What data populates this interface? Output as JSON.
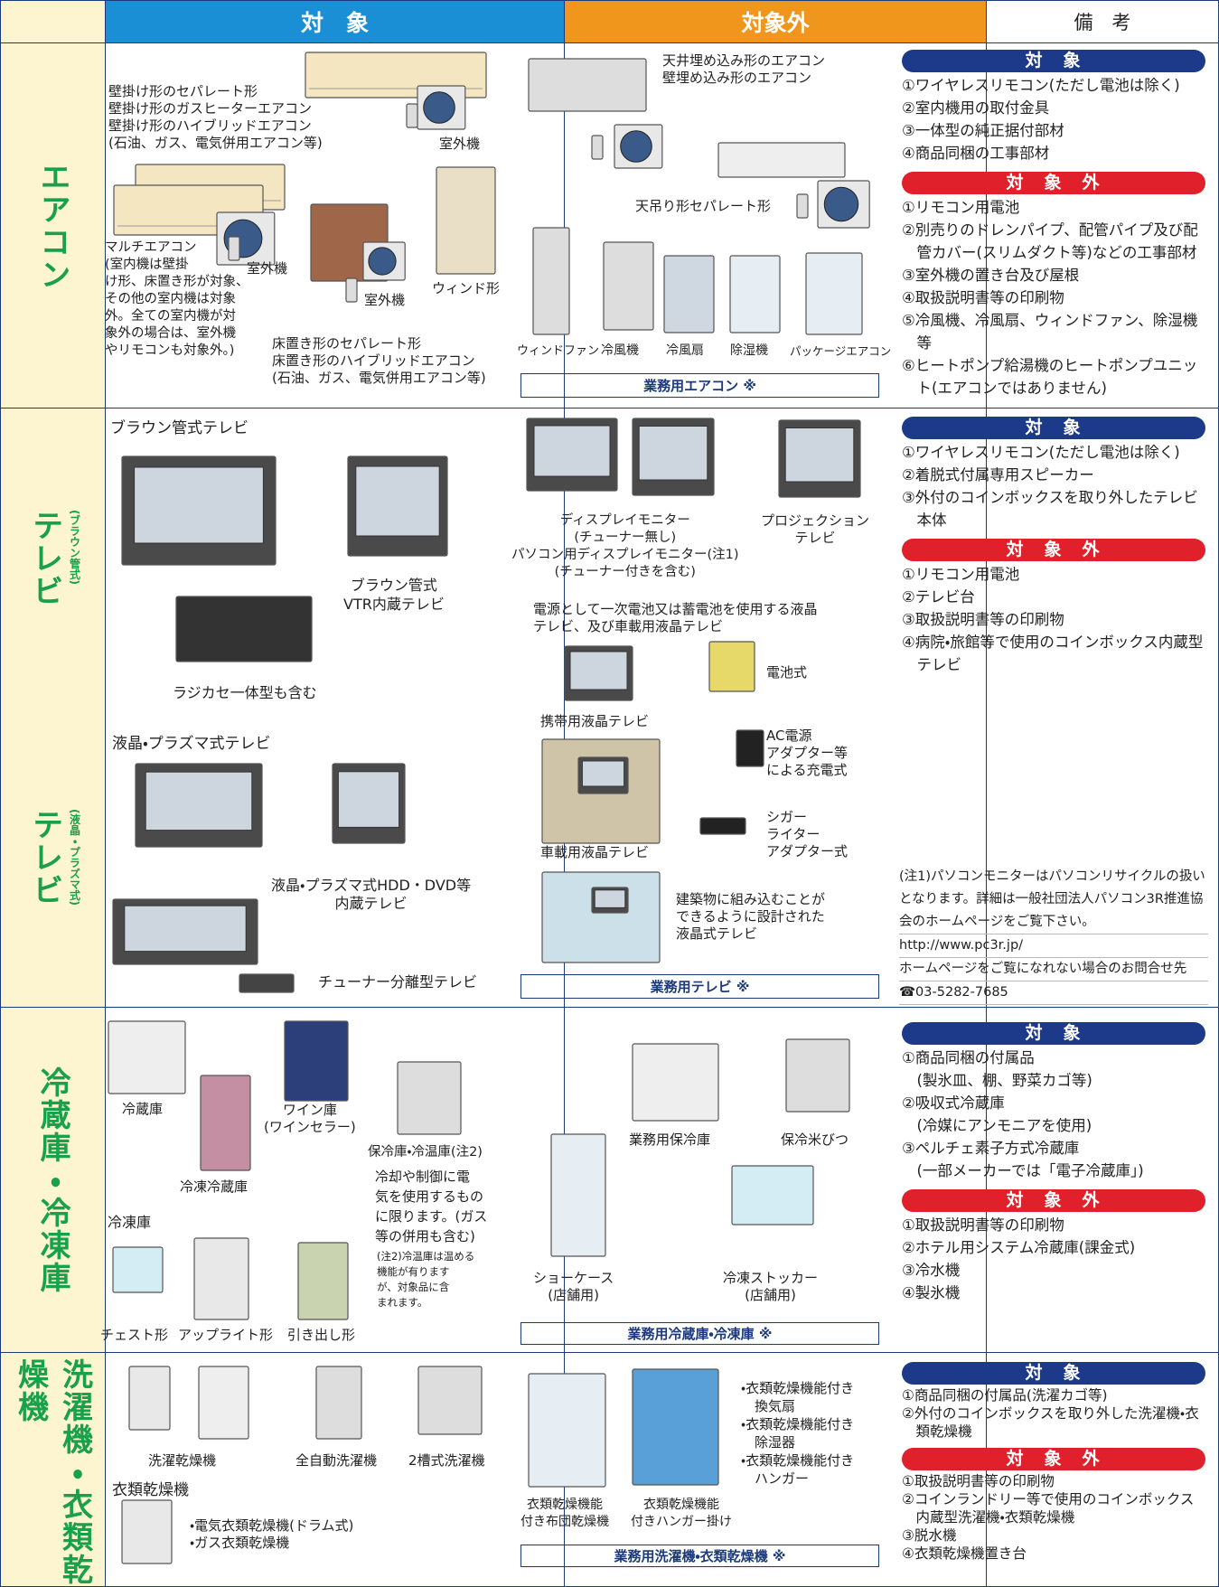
{
  "header": {
    "target": "対　象",
    "non_target": "対象外",
    "remarks": "備　考"
  },
  "rows": [
    {
      "label": "エアコン",
      "target_texts": [
        "壁掛け形のセパレート形\n壁掛け形のガスヒーターエアコン\n壁掛け形のハイブリッドエアコン\n(石油、ガス、電気併用エアコン等)",
        "室外機",
        "マルチエアコン\n(室内機は壁掛\nけ形、床置き形が対象、\nその他の室内機は対象\n外。全ての室内機が対\n象外の場合は、室外機\nやリモコンも対象外。)",
        "室外機",
        "室外機",
        "ウィンド形",
        "床置き形のセパレート形\n床置き形のハイブリッドエアコン\n(石油、ガス、電気併用エアコン等)"
      ],
      "non_target_texts": [
        "天井埋め込み形のエアコン\n壁埋め込み形のエアコン",
        "天吊り形セパレート形",
        "ウィンドファン",
        "冷風機",
        "冷風扇",
        "除湿機",
        "パッケージエアコン"
      ],
      "commercial": "業務用エアコン ※",
      "remarks": {
        "target_heading": "対　象",
        "target_items": [
          "①ワイヤレスリモコン(ただし電池は除く)",
          "②室内機用の取付金具",
          "③一体型の純正据付部材",
          "④商品同梱の工事部材"
        ],
        "non_target_heading": "対　象　外",
        "non_target_items": [
          "①リモコン用電池",
          "②別売りのドレンパイプ、配管パイプ及び配管カバー(スリムダクト等)などの工事部材",
          "③室外機の置き台及び屋根",
          "④取扱説明書等の印刷物",
          "⑤冷風機、冷風扇、ウィンドファン、除湿機等",
          "⑥ヒートポンプ給湯機のヒートポンプユニット(エアコンではありません)"
        ]
      }
    },
    {
      "labels": [
        {
          "main": "テレビ",
          "sub": "(ブラウン管式)"
        },
        {
          "main": "テレビ",
          "sub": "(液晶・プラズマ式)"
        }
      ],
      "target_texts": [
        "ブラウン管式テレビ",
        "ブラウン管式\nVTR内蔵テレビ",
        "ラジカセ一体型も含む",
        "液晶・プラズマ式テレビ",
        "液晶・プラズマ式HDD・DVD等\n内蔵テレビ",
        "チューナー分離型テレビ"
      ],
      "non_target_texts": [
        "ディスプレイモニター\n(チューナー無し)\nパソコン用ディスプレイモニター(注1)\n(チューナー付きを含む)",
        "プロジェクション\nテレビ",
        "電源として一次電池又は蓄電池を使用する液晶\nテレビ、及び車載用液晶テレビ",
        "電池式",
        "携帯用液晶テレビ",
        "AC電源\nアダプター等\nによる充電式",
        "車載用液晶テレビ",
        "シガー\nライター\nアダプター式",
        "建築物に組み込むことが\nできるように設計された\n液晶式テレビ"
      ],
      "commercial": "業務用テレビ ※",
      "remarks": {
        "target_heading": "対　象",
        "target_items": [
          "①ワイヤレスリモコン(ただし電池は除く)",
          "②着脱式付属専用スピーカー",
          "③外付のコインボックスを取り外したテレビ本体"
        ],
        "non_target_heading": "対　象　外",
        "non_target_items": [
          "①リモコン用電池",
          "②テレビ台",
          "③取扱説明書等の印刷物",
          "④病院・旅館等で使用のコインボックス内蔵型テレビ"
        ],
        "note": [
          "(注1)パソコンモニターはパソコンリサイクルの扱いとなります。詳細は一般社団法人パソコン3R推進協会のホームページをご覧下さい。",
          "http://www.pc3r.jp/",
          "ホームページをご覧になれない場合のお問合せ先",
          "☎03-5282-7685"
        ]
      }
    },
    {
      "label": "冷蔵庫・冷凍庫",
      "target_texts": [
        "冷蔵庫",
        "ワイン庫\n(ワインセラー)",
        "保冷庫・冷温庫(注2)",
        "冷却や制御に電\n気を使用するもの\nに限ります。(ガス\n等の併用も含む)",
        "(注2)冷温庫は温める\n機能が有ります\nが、対象品に含\nまれます。",
        "冷凍冷蔵庫",
        "冷凍庫",
        "チェスト形",
        "アップライト形",
        "引き出し形"
      ],
      "non_target_texts": [
        "業務用保冷庫",
        "保冷米びつ",
        "ショーケース\n(店舗用)",
        "冷凍ストッカー\n(店舗用)"
      ],
      "commercial": "業務用冷蔵庫・冷凍庫 ※",
      "remarks": {
        "target_heading": "対　象",
        "target_items": [
          "①商品同梱の付属品\n(製氷皿、棚、野菜カゴ等)",
          "②吸収式冷蔵庫\n(冷媒にアンモニアを使用)",
          "③ペルチェ素子方式冷蔵庫\n(一部メーカーでは「電子冷蔵庫」)"
        ],
        "non_target_heading": "対　象　外",
        "non_target_items": [
          "①取扱説明書等の印刷物",
          "②ホテル用システム冷蔵庫(課金式)",
          "③冷水機",
          "④製氷機"
        ]
      }
    },
    {
      "label": "洗濯機・衣類乾燥機",
      "target_texts": [
        "洗濯乾燥機",
        "全自動洗濯機",
        "2槽式洗濯機",
        "衣類乾燥機",
        "・電気衣類乾燥機(ドラム式)\n・ガス衣類乾燥機"
      ],
      "non_target_texts": [
        "・衣類乾燥機能付き\n　換気扇\n・衣類乾燥機能付き\n　除湿器\n・衣類乾燥機能付き\n　ハンガー",
        "衣類乾燥機能\n付き布団乾燥機",
        "衣類乾燥機能\n付きハンガー掛け"
      ],
      "commercial": "業務用洗濯機・衣類乾燥機 ※",
      "remarks": {
        "target_heading": "対　象",
        "target_items": [
          "①商品同梱の付属品(洗濯カゴ等)",
          "②外付のコインボックスを取り外した洗濯機・衣類乾燥機"
        ],
        "non_target_heading": "対　象　外",
        "non_target_items": [
          "①取扱説明書等の印刷物",
          "②コインランドリー等で使用のコインボックス内蔵型洗濯機・衣類乾燥機",
          "③脱水機",
          "④衣類乾燥機置き台"
        ]
      }
    }
  ]
}
